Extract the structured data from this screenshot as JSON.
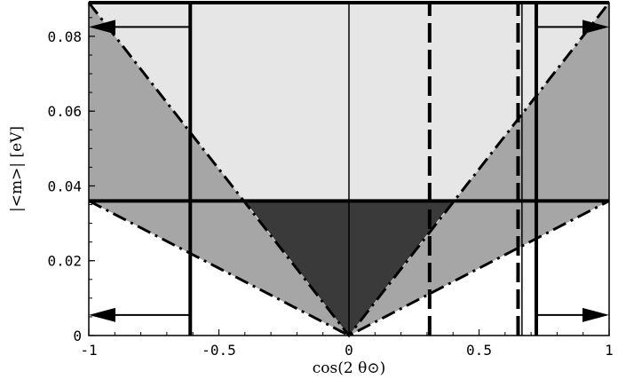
{
  "chart_data": {
    "type": "area",
    "xlabel": "cos(2 θ⊙)",
    "ylabel": "|<m>| [eV]",
    "xlim": [
      -1,
      1
    ],
    "ylim": [
      0,
      0.089
    ],
    "x_ticks": [
      -1,
      -0.5,
      0,
      0.5,
      1
    ],
    "x_tick_labels": [
      "-1",
      "-0.5",
      "0",
      "0.5",
      "1"
    ],
    "y_ticks": [
      0,
      0.02,
      0.04,
      0.06,
      0.08
    ],
    "y_tick_labels": [
      "0",
      "0.02",
      "0.04",
      "0.06",
      "0.08"
    ],
    "colors": {
      "light_region": "#e6e6e6",
      "medium_region": "#a6a6a6",
      "dark_region": "#3a3a3a",
      "lines": "#000000"
    },
    "regions": [
      {
        "name": "light",
        "points": [
          [
            -1,
            0.089
          ],
          [
            1,
            0.089
          ],
          [
            0,
            0
          ]
        ]
      },
      {
        "name": "medium-left",
        "points": [
          [
            -1,
            0.089
          ],
          [
            0,
            0
          ],
          [
            -1,
            0.036
          ]
        ]
      },
      {
        "name": "medium-right",
        "points": [
          [
            1,
            0.089
          ],
          [
            0,
            0
          ],
          [
            1,
            0.036
          ]
        ]
      },
      {
        "name": "dark",
        "points": [
          [
            -0.4,
            0.036
          ],
          [
            0.4,
            0.036
          ],
          [
            0,
            0
          ]
        ]
      }
    ],
    "horizontal_lines": [
      {
        "y": 0.089,
        "style": "solid-thick"
      },
      {
        "y": 0.036,
        "style": "solid-thick"
      }
    ],
    "vertical_lines": [
      {
        "x": -0.61,
        "style": "solid-thick",
        "ymax": 0.089
      },
      {
        "x": 0,
        "style": "solid-thin",
        "ymax": 0.089
      },
      {
        "x": 0.31,
        "style": "dashed-thick",
        "ymax": 0.089
      },
      {
        "x": 0.65,
        "style": "dashed-thick",
        "ymax": 0.089
      },
      {
        "x": 0.665,
        "style": "solid-thin",
        "ymax": 0.089
      },
      {
        "x": 0.72,
        "style": "solid-thick",
        "ymax": 0.089
      }
    ],
    "boundary_lines": [
      {
        "points": [
          [
            -1,
            0.089
          ],
          [
            0,
            0
          ],
          [
            1,
            0.089
          ]
        ],
        "style": "dashdot"
      },
      {
        "points": [
          [
            -1,
            0.036
          ],
          [
            0,
            0
          ],
          [
            1,
            0.036
          ]
        ],
        "style": "dashdot"
      }
    ],
    "arrows": [
      {
        "from": [
          -0.61,
          0.0825
        ],
        "to": [
          -1,
          0.0825
        ]
      },
      {
        "from": [
          -0.61,
          0.0055
        ],
        "to": [
          -1,
          0.0055
        ]
      },
      {
        "from": [
          0.72,
          0.0825
        ],
        "to": [
          1,
          0.0825
        ]
      },
      {
        "from": [
          0.72,
          0.0055
        ],
        "to": [
          1,
          0.0055
        ]
      }
    ]
  }
}
